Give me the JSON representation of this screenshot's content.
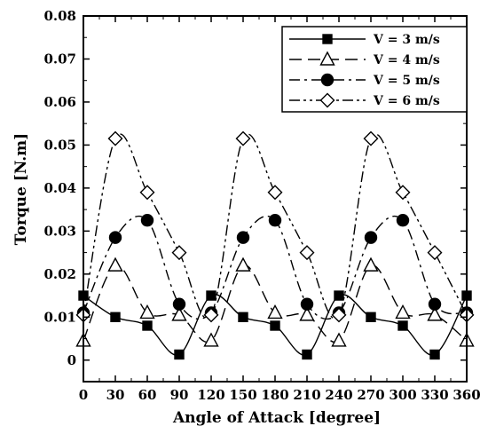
{
  "chart_data": {
    "type": "line",
    "xlabel": "Angle of Attack [degree]",
    "ylabel": "Torque [N.m]",
    "xlim": [
      0,
      360
    ],
    "ylim": [
      -0.005,
      0.08
    ],
    "xticks": [
      0,
      30,
      60,
      90,
      120,
      150,
      180,
      210,
      240,
      270,
      300,
      330,
      360
    ],
    "yticks": [
      0,
      0.01,
      0.02,
      0.03,
      0.04,
      0.05,
      0.06,
      0.07,
      0.08
    ],
    "ytick_labels": [
      "0",
      "0.01",
      "0.02",
      "0.03",
      "0.04",
      "0.05",
      "0.06",
      "0.07",
      "0.08"
    ],
    "x": [
      0,
      30,
      60,
      90,
      120,
      150,
      180,
      210,
      240,
      270,
      300,
      330,
      360
    ],
    "grid": false,
    "legend_position": "top-right",
    "series": [
      {
        "name": "V = 3 m/s",
        "marker": "square-filled",
        "dash": "solid",
        "values": [
          0.015,
          0.01,
          0.008,
          0.0013,
          0.015,
          0.01,
          0.008,
          0.0013,
          0.015,
          0.01,
          0.008,
          0.0013,
          0.015
        ]
      },
      {
        "name": "V = 4 m/s",
        "marker": "triangle-open",
        "dash": "dashed",
        "values": [
          0.0045,
          0.022,
          0.011,
          0.0105,
          0.0045,
          0.022,
          0.011,
          0.0105,
          0.0045,
          0.022,
          0.011,
          0.0105,
          0.0045
        ]
      },
      {
        "name": "V = 5 m/s",
        "marker": "circle-filled",
        "dash": "dashdot",
        "values": [
          0.011,
          0.0285,
          0.0325,
          0.013,
          0.011,
          0.0285,
          0.0325,
          0.013,
          0.011,
          0.0285,
          0.0325,
          0.013,
          0.011
        ]
      },
      {
        "name": "V = 6 m/s",
        "marker": "diamond-open",
        "dash": "dashdotdot",
        "values": [
          0.0105,
          0.0515,
          0.039,
          0.025,
          0.0105,
          0.0515,
          0.039,
          0.025,
          0.0105,
          0.0515,
          0.039,
          0.025,
          0.0105
        ]
      }
    ]
  }
}
